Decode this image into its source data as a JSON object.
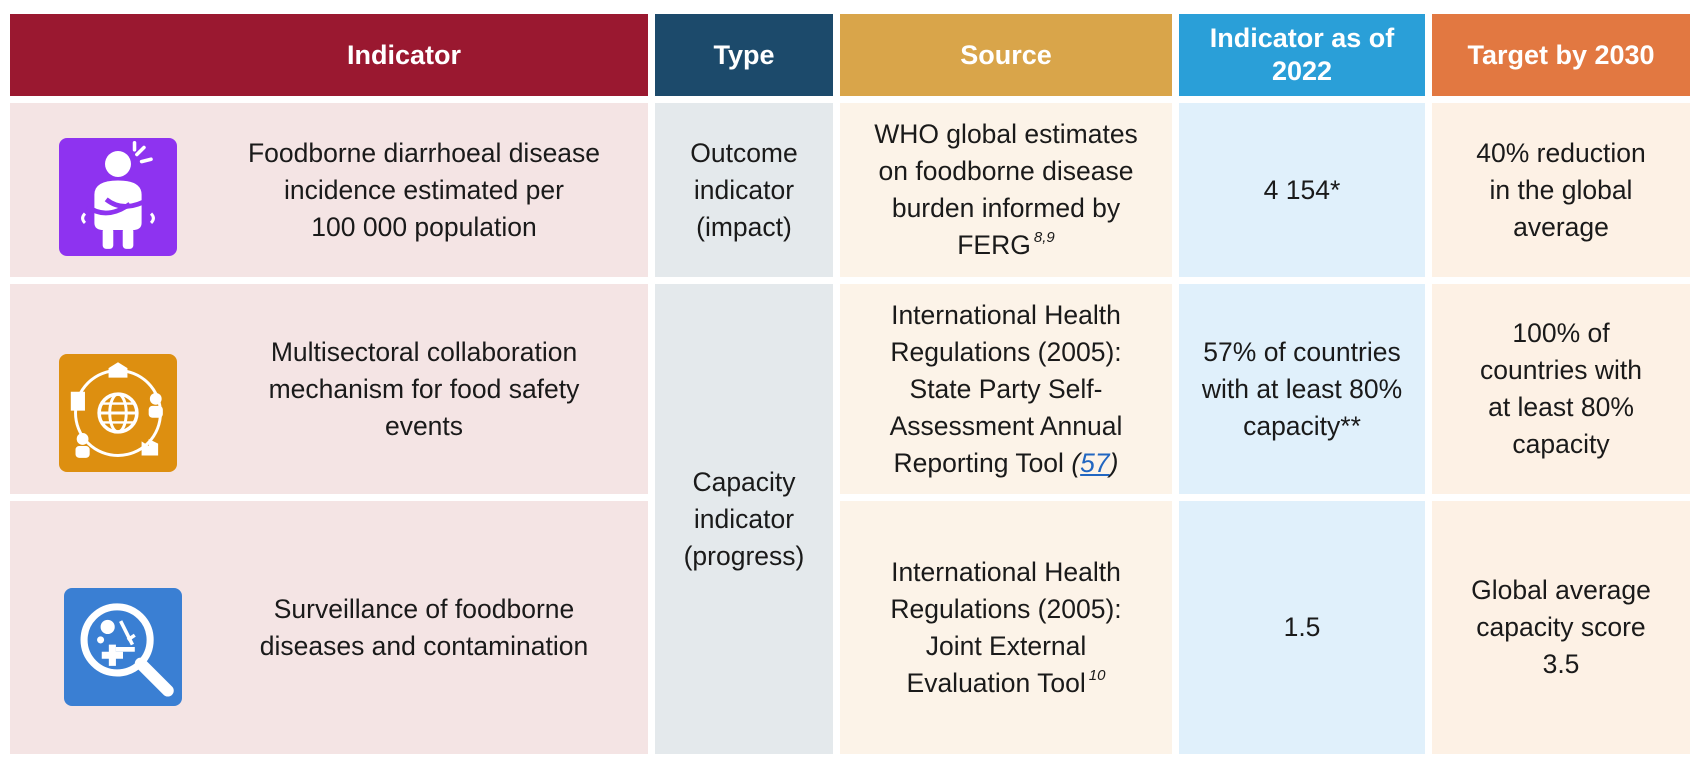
{
  "headers": {
    "indicator": "Indicator",
    "type": "Type",
    "source": "Source",
    "indicator_2022_line1": "Indicator as of",
    "indicator_2022_line2": "2022",
    "target_2030": "Target by 2030"
  },
  "colors": {
    "indicator_header": "#9a1830",
    "type_header": "#1c4a6b",
    "source_header": "#d9a54a",
    "indicator_2022_header": "#2a9fd8",
    "target_header": "#e27841",
    "icon1_bg": "#8e33f0",
    "icon2_bg": "#dd8f10",
    "icon3_bg": "#3a7fd3"
  },
  "rows": [
    {
      "icon": "person-stomach-ache-icon",
      "indicator_lines": [
        "Foodborne diarrhoeal disease",
        "incidence estimated per",
        "100 000 population"
      ],
      "source_lines": [
        "WHO global estimates",
        "on foodborne disease",
        "burden informed by"
      ],
      "source_last": "FERG",
      "source_ref": "8,9",
      "value": "4 154*",
      "target_lines": [
        "40% reduction",
        "in the global",
        "average"
      ]
    },
    {
      "icon": "multisectoral-collaboration-globe-icon",
      "indicator_lines": [
        "Multisectoral collaboration",
        "mechanism for food safety",
        "events"
      ],
      "source_lines": [
        "International Health",
        "Regulations (2005):",
        "State Party Self-",
        "Assessment Annual"
      ],
      "source_last": "Reporting Tool",
      "source_link_open": "(",
      "source_link": "57",
      "source_link_close": ")",
      "value_lines": [
        "57% of countries",
        "with at least 80%",
        "capacity**"
      ],
      "target_lines": [
        "100% of",
        "countries with",
        "at least 80%",
        "capacity"
      ]
    },
    {
      "icon": "surveillance-magnifier-icon",
      "indicator_lines": [
        "Surveillance of foodborne",
        "diseases and contamination"
      ],
      "source_lines": [
        "International Health",
        "Regulations (2005):",
        "Joint External"
      ],
      "source_last": "Evaluation Tool",
      "source_ref": "10",
      "value": "1.5",
      "target_lines": [
        "Global average",
        "capacity score",
        "3.5"
      ]
    }
  ],
  "type_cells": {
    "outcome_lines": [
      "Outcome",
      "indicator",
      "(impact)"
    ],
    "capacity_lines": [
      "Capacity",
      "indicator",
      "(progress)"
    ]
  }
}
